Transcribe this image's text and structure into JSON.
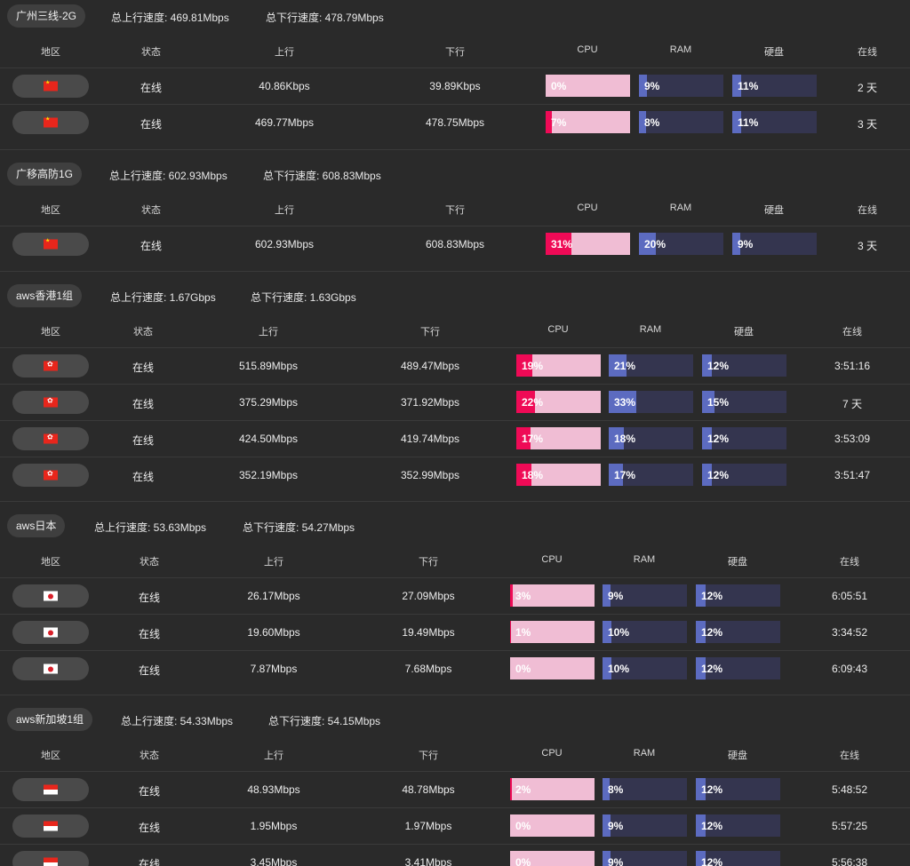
{
  "labels": {
    "total_up_prefix": "总上行速度: ",
    "total_down_prefix": "总下行速度: "
  },
  "columns": {
    "region": "地区",
    "status": "状态",
    "up": "上行",
    "down": "下行",
    "cpu": "CPU",
    "ram": "RAM",
    "disk": "硬盘",
    "uptime": "在线"
  },
  "colors": {
    "background": "#2a2a2a",
    "cpu_fill": "#ef0a56",
    "cpu_track": "#f0bdd4",
    "ram_fill": "#5c6bc0",
    "ram_track": "#34354f"
  },
  "groups": [
    {
      "name": "广州三线-2G",
      "total_up": "469.81Mbps",
      "total_down": "478.79Mbps",
      "rows": [
        {
          "flag": "cn",
          "status": "在线",
          "up": "40.86Kbps",
          "down": "39.89Kbps",
          "cpu": 0,
          "ram": 9,
          "disk": 11,
          "uptime": "2 天"
        },
        {
          "flag": "cn",
          "status": "在线",
          "up": "469.77Mbps",
          "down": "478.75Mbps",
          "cpu": 7,
          "ram": 8,
          "disk": 11,
          "uptime": "3 天"
        }
      ]
    },
    {
      "name": "广移高防1G",
      "total_up": "602.93Mbps",
      "total_down": "608.83Mbps",
      "rows": [
        {
          "flag": "cn",
          "status": "在线",
          "up": "602.93Mbps",
          "down": "608.83Mbps",
          "cpu": 31,
          "ram": 20,
          "disk": 9,
          "uptime": "3 天"
        }
      ]
    },
    {
      "name": "aws香港1组",
      "total_up": "1.67Gbps",
      "total_down": "1.63Gbps",
      "rows": [
        {
          "flag": "hk",
          "status": "在线",
          "up": "515.89Mbps",
          "down": "489.47Mbps",
          "cpu": 19,
          "ram": 21,
          "disk": 12,
          "uptime": "3:51:16"
        },
        {
          "flag": "hk",
          "status": "在线",
          "up": "375.29Mbps",
          "down": "371.92Mbps",
          "cpu": 22,
          "ram": 33,
          "disk": 15,
          "uptime": "7 天"
        },
        {
          "flag": "hk",
          "status": "在线",
          "up": "424.50Mbps",
          "down": "419.74Mbps",
          "cpu": 17,
          "ram": 18,
          "disk": 12,
          "uptime": "3:53:09"
        },
        {
          "flag": "hk",
          "status": "在线",
          "up": "352.19Mbps",
          "down": "352.99Mbps",
          "cpu": 18,
          "ram": 17,
          "disk": 12,
          "uptime": "3:51:47"
        }
      ]
    },
    {
      "name": "aws日本",
      "total_up": "53.63Mbps",
      "total_down": "54.27Mbps",
      "rows": [
        {
          "flag": "jp",
          "status": "在线",
          "up": "26.17Mbps",
          "down": "27.09Mbps",
          "cpu": 3,
          "ram": 9,
          "disk": 12,
          "uptime": "6:05:51"
        },
        {
          "flag": "jp",
          "status": "在线",
          "up": "19.60Mbps",
          "down": "19.49Mbps",
          "cpu": 1,
          "ram": 10,
          "disk": 12,
          "uptime": "3:34:52"
        },
        {
          "flag": "jp",
          "status": "在线",
          "up": "7.87Mbps",
          "down": "7.68Mbps",
          "cpu": 0,
          "ram": 10,
          "disk": 12,
          "uptime": "6:09:43"
        }
      ]
    },
    {
      "name": "aws新加坡1组",
      "total_up": "54.33Mbps",
      "total_down": "54.15Mbps",
      "rows": [
        {
          "flag": "sg",
          "status": "在线",
          "up": "48.93Mbps",
          "down": "48.78Mbps",
          "cpu": 2,
          "ram": 8,
          "disk": 12,
          "uptime": "5:48:52"
        },
        {
          "flag": "sg",
          "status": "在线",
          "up": "1.95Mbps",
          "down": "1.97Mbps",
          "cpu": 0,
          "ram": 9,
          "disk": 12,
          "uptime": "5:57:25"
        },
        {
          "flag": "sg",
          "status": "在线",
          "up": "3.45Mbps",
          "down": "3.41Mbps",
          "cpu": 0,
          "ram": 9,
          "disk": 12,
          "uptime": "5:56:38"
        }
      ]
    }
  ]
}
